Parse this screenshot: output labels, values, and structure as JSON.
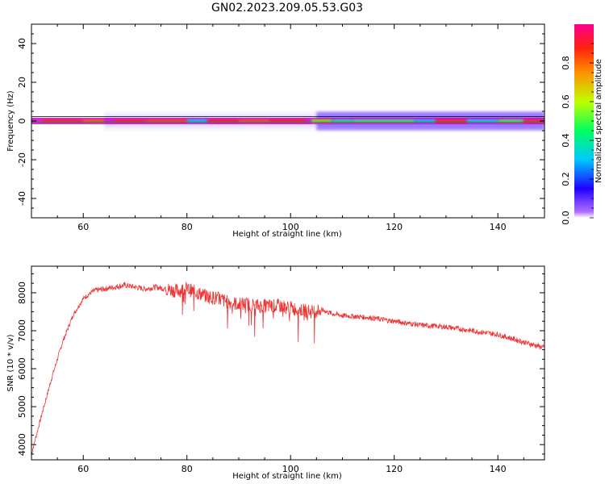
{
  "title": "GN02.2023.209.05.53.G03",
  "chart_data": [
    {
      "type": "heatmap",
      "xlabel": "Height of straight line (km)",
      "ylabel": "Frequency (Hz)",
      "xlim": [
        50,
        149
      ],
      "ylim": [
        -50,
        50
      ],
      "xticks": [
        60,
        80,
        100,
        120,
        140
      ],
      "yticks": [
        -40,
        -20,
        0,
        20,
        40
      ],
      "colorbar": {
        "label": "Normalized spectral amplitude",
        "range": [
          0,
          1
        ],
        "ticks": [
          "0.0",
          "0.2",
          "0.4",
          "0.6",
          "0.8"
        ],
        "colormap": "gist_rainbow_reversed"
      },
      "signal_band": {
        "center_hz": 0,
        "half_width_hz": 1.5
      },
      "grid": false
    },
    {
      "type": "line",
      "xlabel": "Height of straight line (km)",
      "ylabel": "SNR (10 * v/v)",
      "xlim": [
        50,
        149
      ],
      "ylim": [
        3600,
        8700
      ],
      "xticks": [
        60,
        80,
        100,
        120,
        140
      ],
      "yticks": [
        4000,
        5000,
        6000,
        7000,
        8000
      ],
      "color": "#ee3333",
      "series": [
        {
          "x": [
            50,
            52,
            54,
            56,
            58,
            60,
            62,
            64,
            66,
            68,
            70,
            72,
            74,
            76,
            78,
            80,
            82,
            84,
            86,
            88,
            90,
            92,
            94,
            96,
            98,
            100,
            102,
            104,
            106,
            108,
            110,
            115,
            120,
            125,
            130,
            135,
            140,
            145,
            149
          ],
          "y": [
            3750,
            4800,
            5800,
            6700,
            7400,
            7850,
            8050,
            8100,
            8150,
            8200,
            8150,
            8100,
            8150,
            8100,
            8050,
            8100,
            8000,
            7900,
            7850,
            7750,
            7700,
            7700,
            7650,
            7650,
            7650,
            7600,
            7550,
            7500,
            7550,
            7450,
            7400,
            7350,
            7250,
            7150,
            7100,
            7000,
            6900,
            6700,
            6550
          ]
        }
      ]
    }
  ]
}
